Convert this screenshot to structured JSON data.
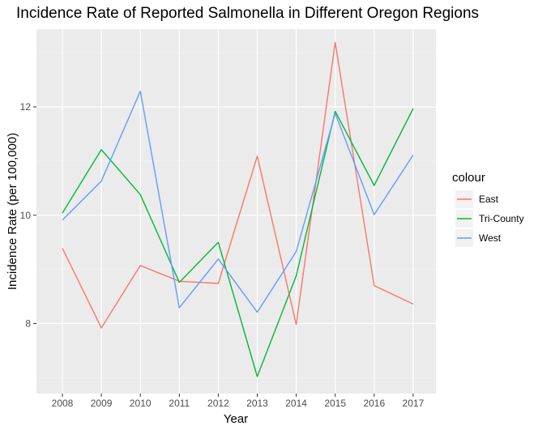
{
  "chart_data": {
    "type": "line",
    "title": "Incidence Rate of Reported Salmonella in Different Oregon Regions",
    "xlabel": "Year",
    "ylabel": "Incidence Rate (per 100,000)",
    "x": [
      "2008",
      "2009",
      "2010",
      "2011",
      "2012",
      "2013",
      "2014",
      "2015",
      "2016",
      "2017"
    ],
    "y_ticks": [
      "8",
      "10",
      "12"
    ],
    "ylim": [
      6.7,
      13.6
    ],
    "grid": true,
    "legend": {
      "title": "colour",
      "position": "right"
    },
    "series": [
      {
        "name": "East",
        "color": "#F8766D",
        "values": [
          9.39,
          7.92,
          9.07,
          8.78,
          8.74,
          11.09,
          7.98,
          13.19,
          8.7,
          8.36
        ]
      },
      {
        "name": "Tri-County",
        "color": "#00BA38",
        "values": [
          10.04,
          11.21,
          10.38,
          8.76,
          9.5,
          7.02,
          8.88,
          11.92,
          10.55,
          11.97
        ]
      },
      {
        "name": "West",
        "color": "#619CFF",
        "values": [
          9.91,
          10.63,
          12.29,
          8.29,
          9.19,
          8.21,
          9.33,
          11.88,
          10.01,
          11.11
        ]
      }
    ]
  }
}
